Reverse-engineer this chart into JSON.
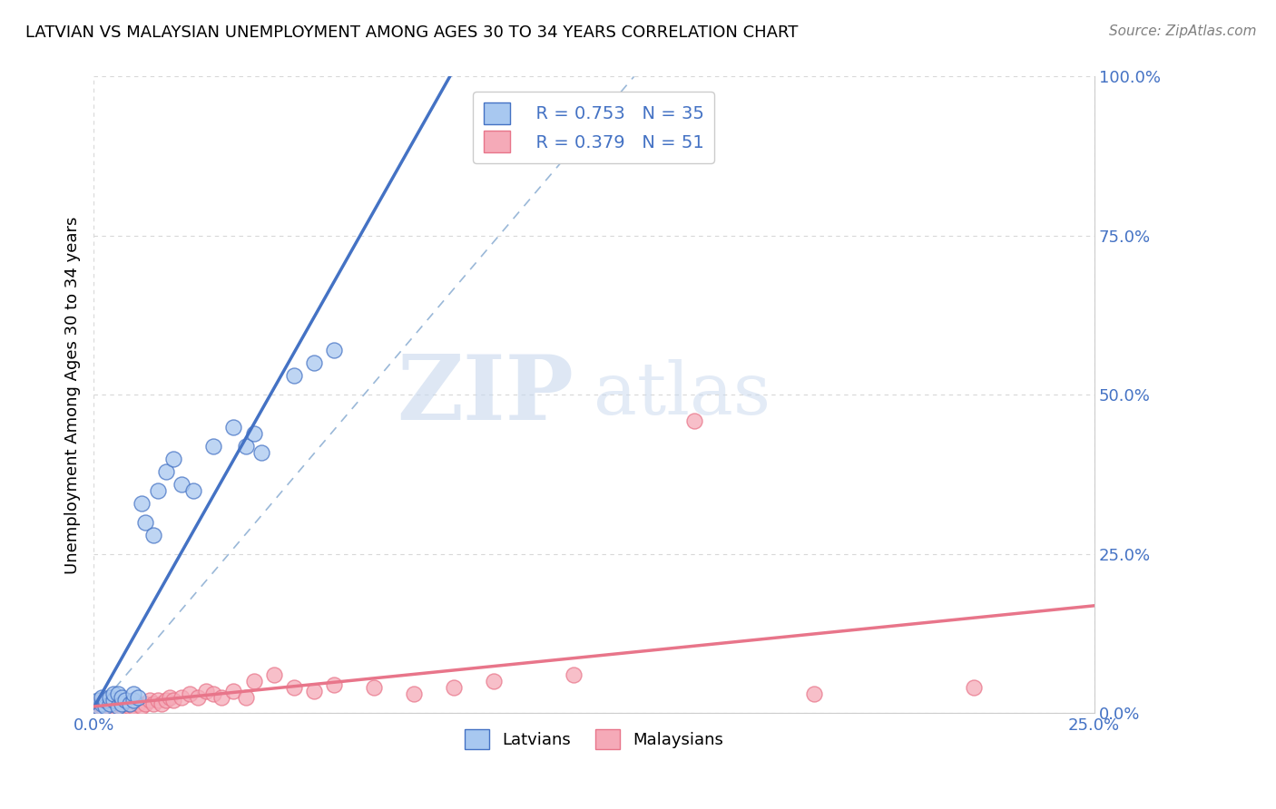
{
  "title": "LATVIAN VS MALAYSIAN UNEMPLOYMENT AMONG AGES 30 TO 34 YEARS CORRELATION CHART",
  "source": "Source: ZipAtlas.com",
  "ylabel_label": "Unemployment Among Ages 30 to 34 years",
  "latvian_R": 0.753,
  "latvian_N": 35,
  "malaysian_R": 0.379,
  "malaysian_N": 51,
  "latvian_color": "#a8c8f0",
  "malaysian_color": "#f5aab8",
  "latvian_line_color": "#4472c4",
  "malaysian_line_color": "#e8758a",
  "ref_line_color": "#9ab8d8",
  "legend_label_1": "Latvians",
  "legend_label_2": "Malaysians",
  "xmin": 0.0,
  "xmax": 0.25,
  "ymin": 0.0,
  "ymax": 1.0,
  "latvian_points_x": [
    0.001,
    0.001,
    0.002,
    0.002,
    0.003,
    0.003,
    0.004,
    0.004,
    0.005,
    0.005,
    0.006,
    0.006,
    0.007,
    0.007,
    0.008,
    0.009,
    0.01,
    0.01,
    0.011,
    0.012,
    0.013,
    0.015,
    0.016,
    0.018,
    0.02,
    0.022,
    0.025,
    0.03,
    0.035,
    0.038,
    0.04,
    0.042,
    0.05,
    0.055,
    0.06
  ],
  "latvian_points_y": [
    0.01,
    0.02,
    0.015,
    0.025,
    0.01,
    0.02,
    0.015,
    0.025,
    0.02,
    0.03,
    0.01,
    0.03,
    0.015,
    0.025,
    0.02,
    0.015,
    0.02,
    0.03,
    0.025,
    0.33,
    0.3,
    0.28,
    0.35,
    0.38,
    0.4,
    0.36,
    0.35,
    0.42,
    0.45,
    0.42,
    0.44,
    0.41,
    0.53,
    0.55,
    0.57
  ],
  "malaysian_points_x": [
    0.001,
    0.001,
    0.002,
    0.002,
    0.003,
    0.003,
    0.004,
    0.004,
    0.005,
    0.005,
    0.006,
    0.006,
    0.007,
    0.007,
    0.008,
    0.008,
    0.009,
    0.009,
    0.01,
    0.01,
    0.011,
    0.012,
    0.013,
    0.014,
    0.015,
    0.016,
    0.017,
    0.018,
    0.019,
    0.02,
    0.022,
    0.024,
    0.026,
    0.028,
    0.03,
    0.032,
    0.035,
    0.038,
    0.04,
    0.045,
    0.05,
    0.055,
    0.06,
    0.07,
    0.08,
    0.09,
    0.1,
    0.12,
    0.15,
    0.18,
    0.22
  ],
  "malaysian_points_y": [
    0.01,
    0.015,
    0.01,
    0.02,
    0.01,
    0.015,
    0.01,
    0.02,
    0.01,
    0.015,
    0.01,
    0.02,
    0.01,
    0.015,
    0.01,
    0.02,
    0.01,
    0.015,
    0.01,
    0.02,
    0.015,
    0.01,
    0.015,
    0.02,
    0.015,
    0.02,
    0.015,
    0.02,
    0.025,
    0.02,
    0.025,
    0.03,
    0.025,
    0.035,
    0.03,
    0.025,
    0.035,
    0.025,
    0.05,
    0.06,
    0.04,
    0.035,
    0.045,
    0.04,
    0.03,
    0.04,
    0.05,
    0.06,
    0.46,
    0.03,
    0.04
  ],
  "watermark_zip": "ZIP",
  "watermark_atlas": "atlas",
  "background_color": "#ffffff",
  "grid_color": "#d8d8d8",
  "title_fontsize": 13,
  "source_fontsize": 11,
  "tick_fontsize": 13,
  "ylabel_fontsize": 13,
  "legend_fontsize": 14,
  "watermark_fontsize_zip": 72,
  "watermark_fontsize_atlas": 58
}
